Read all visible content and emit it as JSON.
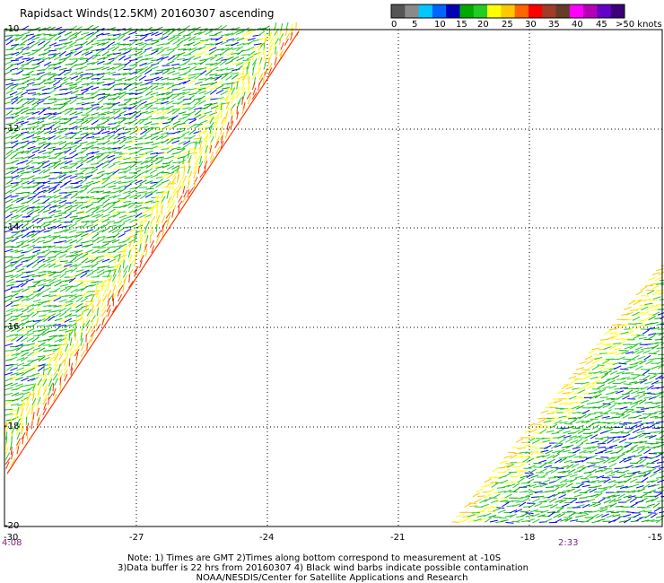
{
  "title": "Rapidsact Winds(12.5KM) 20160307 ascending",
  "colorbar": {
    "colors": [
      "#555555",
      "#8a8a8a",
      "#00c8ff",
      "#0064ff",
      "#0000b4",
      "#00aa00",
      "#22cc22",
      "#ffff00",
      "#ffc800",
      "#ff6400",
      "#ff0000",
      "#a03c28",
      "#643c28",
      "#ff00ff",
      "#b400b4",
      "#6400c8",
      "#3c0078"
    ],
    "labels": [
      "0",
      "5",
      "10",
      "15",
      "20",
      "25",
      "30",
      "35",
      "40",
      "45",
      ">50 knots"
    ]
  },
  "axes": {
    "lon_labels": [
      "-30",
      "-27",
      "-24",
      "-21",
      "-18",
      "-15"
    ],
    "lat_labels": [
      "-10",
      "-12",
      "-14",
      "-16",
      "-18",
      "-20"
    ]
  },
  "times": {
    "left": "4:08",
    "right": "2:33"
  },
  "notes": {
    "line1": "Note: 1) Times are GMT 2)Times along bottom correspond to measurement at -10S",
    "line2": "3)Data buffer is 22 hrs from 20160307 4) Black wind barbs indicate possible contamination",
    "line3": "NOAA/NESDIS/Center for Satellite Applications and Research"
  },
  "wind_colors": {
    "calm": "#0000ff",
    "moderate": "#00aa00",
    "fresh": "#22cc22",
    "strong": "#ffff00",
    "gale": "#ffc800",
    "edge": "#ff3300"
  }
}
